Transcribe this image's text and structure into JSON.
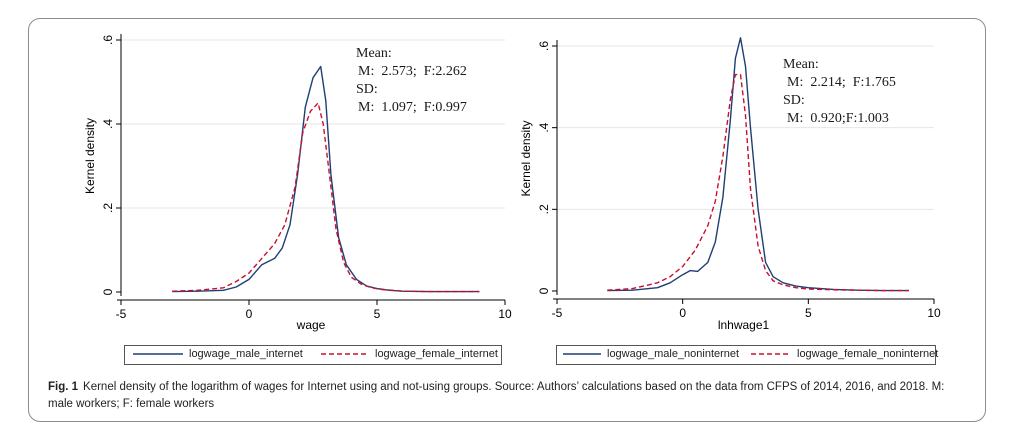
{
  "caption": {
    "label": "Fig. 1",
    "text": "Kernel density of the logarithm of wages for Internet using and not-using groups. Source: Authors’ calculations based on the data from CFPS of 2014, 2016, and 2018. M: male workers; F: female workers"
  },
  "colors": {
    "male": "#1f3f73",
    "female": "#c8102e",
    "axis": "#000000",
    "grid": "#e6e6e6"
  },
  "panels": [
    {
      "stats": {
        "mean_label": "Mean:",
        "mean_values": "M:  2.573;  F:2.262",
        "sd_label": "SD:",
        "sd_values": "M:  1.097;  F:0.997"
      },
      "legend": {
        "male": "logwage_male_internet",
        "female": "logwage_female_internet"
      }
    },
    {
      "stats": {
        "mean_label": "Mean:",
        "mean_values": "M:  2.214;  F:1.765",
        "sd_label": "SD:",
        "sd_values": "M:  0.920;F:1.003"
      },
      "legend": {
        "male": "logwage_male_noninternet",
        "female": "logwage_female_noninternet"
      }
    }
  ],
  "chart_data": [
    {
      "type": "line",
      "xlabel": "wage",
      "ylabel": "Kernel density",
      "xlim": [
        -5,
        10
      ],
      "ylim": [
        0,
        0.6
      ],
      "xticks": [
        -5,
        0,
        5,
        10
      ],
      "yticks": [
        0,
        0.2,
        0.4,
        0.6
      ],
      "ytick_labels": [
        "0",
        ".2",
        ".4",
        ".6"
      ],
      "grid": true,
      "series": [
        {
          "name": "logwage_male_internet",
          "style": "solid",
          "x": [
            -3,
            -2,
            -1,
            -0.5,
            0,
            0.5,
            1,
            1.3,
            1.6,
            1.9,
            2.2,
            2.5,
            2.8,
            3.0,
            3.2,
            3.5,
            3.8,
            4.2,
            4.6,
            5.0,
            5.5,
            6,
            7,
            8,
            9
          ],
          "y": [
            0.001,
            0.002,
            0.004,
            0.012,
            0.03,
            0.065,
            0.08,
            0.105,
            0.16,
            0.28,
            0.44,
            0.51,
            0.537,
            0.455,
            0.28,
            0.13,
            0.065,
            0.03,
            0.014,
            0.008,
            0.004,
            0.002,
            0.001,
            0.001,
            0.001
          ]
        },
        {
          "name": "logwage_female_internet",
          "style": "dashed",
          "x": [
            -3,
            -2,
            -1,
            -0.5,
            0,
            0.5,
            1,
            1.4,
            1.8,
            2.1,
            2.4,
            2.7,
            2.9,
            3.1,
            3.4,
            3.7,
            4.0,
            4.4,
            4.8,
            5.2,
            5.6,
            6,
            7,
            8,
            9
          ],
          "y": [
            0.002,
            0.004,
            0.01,
            0.025,
            0.045,
            0.08,
            0.115,
            0.16,
            0.25,
            0.38,
            0.43,
            0.45,
            0.4,
            0.3,
            0.15,
            0.07,
            0.035,
            0.018,
            0.01,
            0.006,
            0.004,
            0.002,
            0.001,
            0.001,
            0.001
          ]
        }
      ]
    },
    {
      "type": "line",
      "xlabel": "lnhwage1",
      "ylabel": "Kernel density",
      "xlim": [
        -5,
        10
      ],
      "ylim": [
        0,
        0.6
      ],
      "xticks": [
        -5,
        0,
        5,
        10
      ],
      "yticks": [
        0,
        0.2,
        0.4,
        0.6
      ],
      "ytick_labels": [
        "0",
        ".2",
        ".4",
        ".6"
      ],
      "grid": true,
      "series": [
        {
          "name": "logwage_male_noninternet",
          "style": "solid",
          "x": [
            -3,
            -2,
            -1,
            -0.5,
            0,
            0.3,
            0.6,
            1.0,
            1.3,
            1.6,
            1.9,
            2.1,
            2.3,
            2.5,
            2.7,
            3.0,
            3.3,
            3.6,
            4.0,
            4.5,
            5,
            6,
            7,
            8,
            9
          ],
          "y": [
            0.001,
            0.002,
            0.008,
            0.02,
            0.04,
            0.05,
            0.048,
            0.07,
            0.12,
            0.23,
            0.42,
            0.57,
            0.62,
            0.55,
            0.4,
            0.2,
            0.07,
            0.035,
            0.02,
            0.012,
            0.008,
            0.004,
            0.002,
            0.001,
            0.001
          ]
        },
        {
          "name": "logwage_female_noninternet",
          "style": "dashed",
          "x": [
            -3,
            -2,
            -1,
            -0.5,
            0,
            0.5,
            1.0,
            1.3,
            1.6,
            1.9,
            2.1,
            2.3,
            2.5,
            2.7,
            3.0,
            3.3,
            3.6,
            4.0,
            4.5,
            5,
            6,
            7,
            8,
            9
          ],
          "y": [
            0.002,
            0.006,
            0.02,
            0.035,
            0.06,
            0.1,
            0.16,
            0.22,
            0.33,
            0.47,
            0.53,
            0.53,
            0.43,
            0.25,
            0.11,
            0.05,
            0.025,
            0.015,
            0.008,
            0.005,
            0.003,
            0.002,
            0.001,
            0.001
          ]
        }
      ]
    }
  ]
}
